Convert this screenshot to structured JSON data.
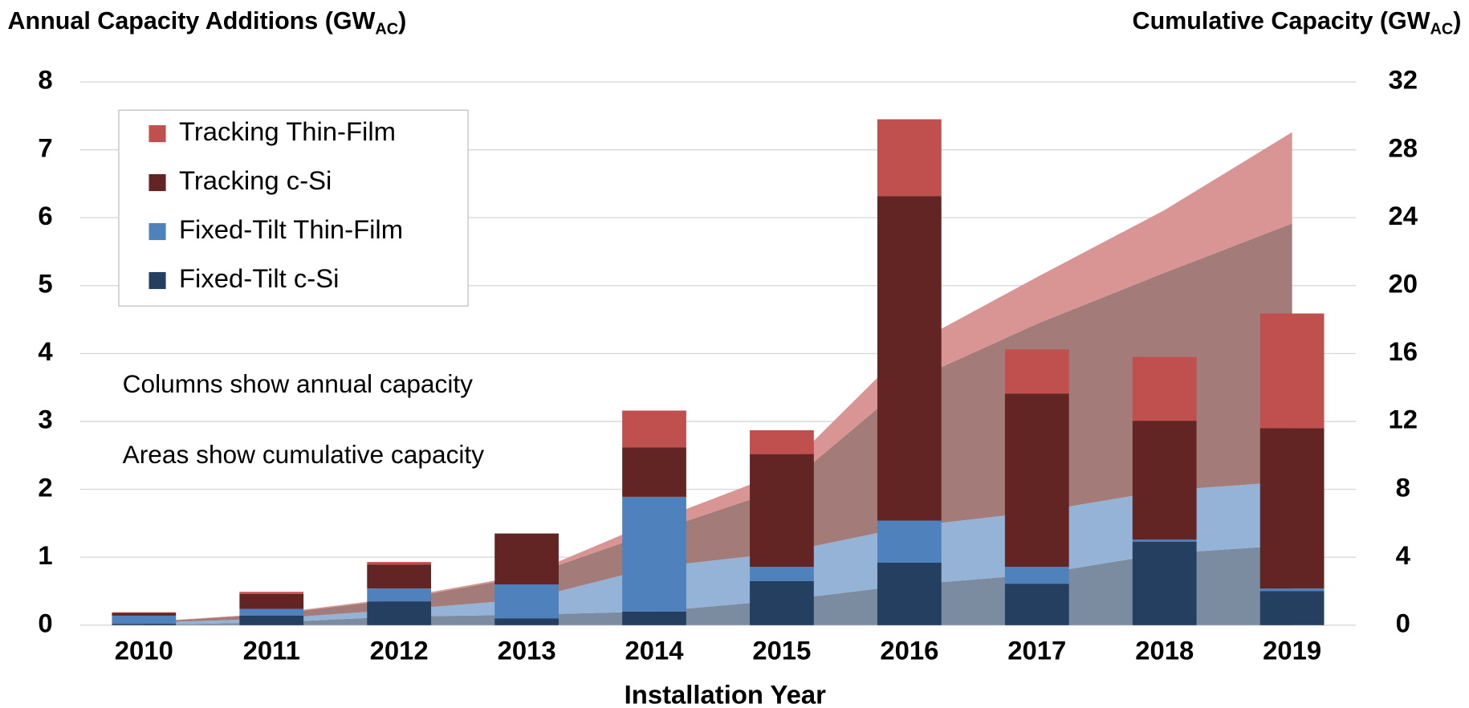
{
  "chart_data": {
    "type": "bar",
    "ylabel": "Annual Capacity Additions (GW",
    "ylabel_sub": "AC",
    "ylabel_end": ")",
    "y2label": "Cumulative Capacity (GW",
    "y2label_sub": "AC",
    "y2label_end": ")",
    "xlabel": "Installation Year",
    "annotations": [
      "Columns show annual capacity",
      "Areas show cumulative capacity"
    ],
    "categories": [
      "2010",
      "2011",
      "2012",
      "2013",
      "2014",
      "2015",
      "2016",
      "2017",
      "2018",
      "2019"
    ],
    "series": [
      {
        "name": "Fixed-Tilt c-Si",
        "color": "#243f60",
        "values": [
          0.02,
          0.14,
          0.35,
          0.1,
          0.2,
          0.65,
          0.92,
          0.61,
          1.23,
          0.5
        ]
      },
      {
        "name": "Fixed-Tilt Thin-Film",
        "color": "#4f81bd",
        "values": [
          0.12,
          0.1,
          0.19,
          0.5,
          1.69,
          0.21,
          0.62,
          0.25,
          0.03,
          0.04
        ]
      },
      {
        "name": "Tracking c-Si",
        "color": "#632523",
        "values": [
          0.04,
          0.22,
          0.35,
          0.75,
          0.73,
          1.66,
          4.78,
          2.55,
          1.75,
          2.36
        ]
      },
      {
        "name": "Tracking Thin-Film",
        "color": "#c0504d",
        "values": [
          0.01,
          0.03,
          0.04,
          0,
          0.54,
          0.35,
          1.13,
          0.65,
          0.94,
          1.69
        ]
      }
    ],
    "areas": [
      {
        "color": "#7b8ba0",
        "axis": "y2",
        "values": [
          0.02,
          0.16,
          0.51,
          0.61,
          0.81,
          1.46,
          2.38,
          2.99,
          4.22,
          4.72
        ]
      },
      {
        "color": "#95b3d7",
        "axis": "y2",
        "values": [
          0.12,
          0.22,
          0.41,
          0.91,
          2.6,
          2.81,
          3.43,
          3.68,
          3.71,
          3.75
        ]
      },
      {
        "color": "#a37c7a",
        "axis": "y2",
        "values": [
          0.04,
          0.26,
          0.61,
          1.36,
          2.09,
          3.75,
          8.53,
          11.08,
          12.83,
          15.19
        ]
      },
      {
        "color": "#d99594",
        "axis": "y2",
        "values": [
          0.01,
          0.04,
          0.08,
          0.08,
          0.62,
          0.97,
          2.1,
          2.75,
          3.69,
          5.38
        ]
      }
    ],
    "ylim": [
      0,
      8
    ],
    "yticks": [
      0,
      1,
      2,
      3,
      4,
      5,
      6,
      7,
      8
    ],
    "y2lim": [
      0,
      32
    ],
    "y2ticks": [
      0,
      4,
      8,
      12,
      16,
      20,
      24,
      28,
      32
    ],
    "grid": true,
    "legend": "upper left"
  }
}
